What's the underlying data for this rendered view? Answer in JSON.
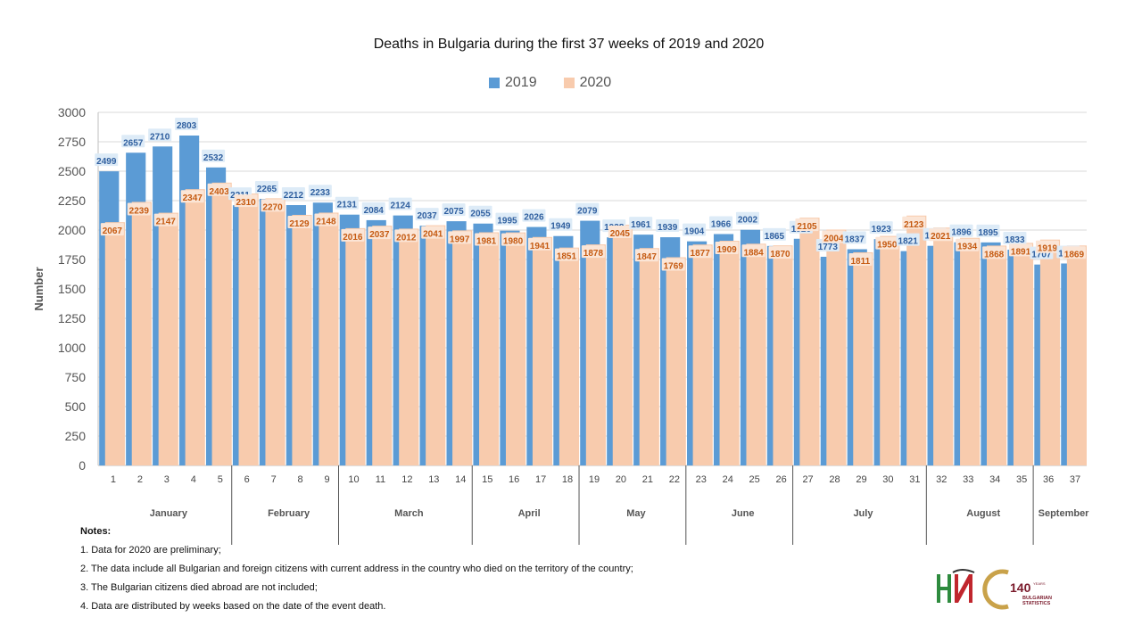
{
  "title": "Deaths in Bulgaria during the first 37 weeks of 2019 and 2020",
  "colors": {
    "s2019": "#5b9bd5",
    "s2020": "#f8cbad",
    "label2019": "#2f5f9f",
    "label2020": "#c55a11",
    "grid": "#d9d9d9"
  },
  "legend": [
    {
      "label": "2019",
      "color": "#5b9bd5"
    },
    {
      "label": "2020",
      "color": "#f8cbad"
    }
  ],
  "chart_data": {
    "type": "bar",
    "title": "Deaths in Bulgaria during the first 37 weeks of 2019 and 2020",
    "xlabel": "",
    "ylabel": "Number",
    "ylim": [
      0,
      3000
    ],
    "yticks": [
      0,
      250,
      500,
      750,
      1000,
      1250,
      1500,
      1750,
      2000,
      2250,
      2500,
      2750,
      3000
    ],
    "grid": true,
    "legend_position": "top-center",
    "categories": [
      "1",
      "2",
      "3",
      "4",
      "5",
      "6",
      "7",
      "8",
      "9",
      "10",
      "11",
      "12",
      "13",
      "14",
      "15",
      "16",
      "17",
      "18",
      "19",
      "20",
      "21",
      "22",
      "23",
      "24",
      "25",
      "26",
      "27",
      "28",
      "29",
      "30",
      "31",
      "32",
      "33",
      "34",
      "35",
      "36",
      "37"
    ],
    "series": [
      {
        "name": "2019",
        "values": [
          2499,
          2657,
          2710,
          2803,
          2532,
          2211,
          2265,
          2212,
          2233,
          2131,
          2084,
          2124,
          2037,
          2075,
          2055,
          1995,
          2026,
          1949,
          2079,
          1938,
          1961,
          1939,
          1904,
          1966,
          2002,
          1865,
          1926,
          1773,
          1837,
          1923,
          1821,
          1866,
          1896,
          1895,
          1833,
          1707,
          1716
        ]
      },
      {
        "name": "2020",
        "values": [
          2067,
          2239,
          2147,
          2347,
          2403,
          2310,
          2270,
          2129,
          2148,
          2016,
          2037,
          2012,
          2041,
          1997,
          1981,
          1980,
          1941,
          1851,
          1878,
          2045,
          1847,
          1769,
          1877,
          1909,
          1884,
          1870,
          2105,
          2004,
          1811,
          1950,
          2123,
          2021,
          1934,
          1868,
          1891,
          1919,
          1869
        ]
      }
    ],
    "months": [
      {
        "name": "January",
        "start": 1,
        "end": 5
      },
      {
        "name": "February",
        "start": 6,
        "end": 9
      },
      {
        "name": "March",
        "start": 10,
        "end": 14
      },
      {
        "name": "April",
        "start": 15,
        "end": 18
      },
      {
        "name": "May",
        "start": 19,
        "end": 22
      },
      {
        "name": "June",
        "start": 23,
        "end": 26
      },
      {
        "name": "July",
        "start": 27,
        "end": 31
      },
      {
        "name": "August",
        "start": 32,
        "end": 35
      },
      {
        "name": "September",
        "start": 36,
        "end": 37
      }
    ]
  },
  "notes": {
    "title": "Notes:",
    "items": [
      "1. Data for 2020 are preliminary;",
      "2. The data include all Bulgarian and foreign citizens with current address in the country who died on the territory of the country;",
      "3. The Bulgarian citizens died abroad are not included;",
      "4. Data are distributed by weeks  based on the date of the  event death."
    ]
  },
  "logo": {
    "years_text": "140",
    "years_suffix": "YEARS",
    "brand_line1": "BULGARIAN",
    "brand_line2": "STATISTICS"
  }
}
